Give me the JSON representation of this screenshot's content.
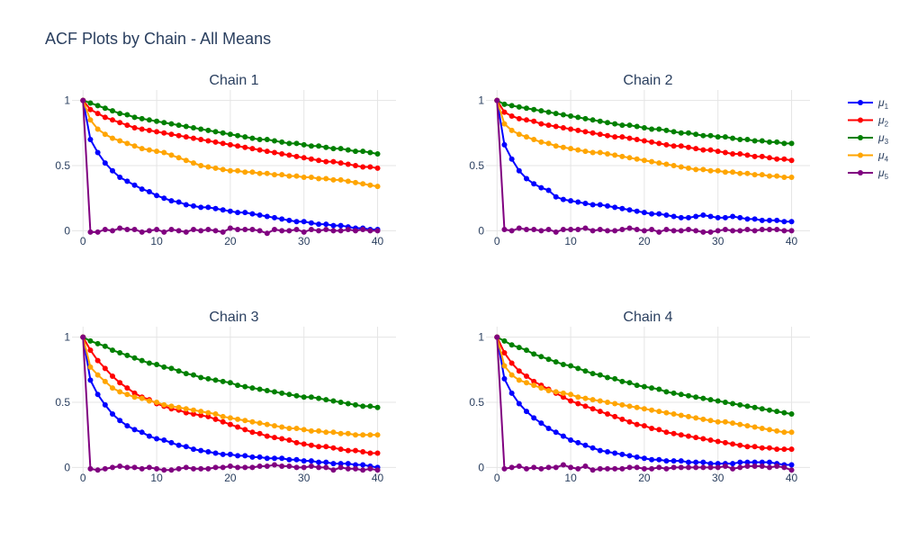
{
  "page": {
    "title": "ACF Plots by Chain - All Means"
  },
  "legend": [
    {
      "key": "mu1",
      "label": "μ1",
      "base": "μ",
      "sub": "1",
      "color": "#0000ff"
    },
    {
      "key": "mu2",
      "label": "μ2",
      "base": "μ",
      "sub": "2",
      "color": "#ff0000"
    },
    {
      "key": "mu3",
      "label": "μ3",
      "base": "μ",
      "sub": "3",
      "color": "#008000"
    },
    {
      "key": "mu4",
      "label": "μ4",
      "base": "μ",
      "sub": "4",
      "color": "#ffa500"
    },
    {
      "key": "mu5",
      "label": "μ5",
      "base": "μ",
      "sub": "5",
      "color": "#800080"
    }
  ],
  "chart_data": [
    {
      "type": "line",
      "title": "Chain 1",
      "x": {
        "min": 0,
        "max": 40,
        "step": 1
      },
      "xlim": [
        -1.5,
        42.5
      ],
      "ylim": [
        -0.08,
        1.08
      ],
      "xticks": [
        0,
        10,
        20,
        30,
        40
      ],
      "xtick_labels": [
        "0",
        "10",
        "20",
        "30",
        "40"
      ],
      "yticks": [
        0,
        0.5,
        1
      ],
      "ytick_labels": [
        "0",
        "0.5",
        "1"
      ],
      "grid": true,
      "series": [
        {
          "name": "μ1",
          "color": "#0000ff",
          "values": [
            1,
            0.7,
            0.6,
            0.52,
            0.46,
            0.41,
            0.38,
            0.35,
            0.32,
            0.3,
            0.27,
            0.25,
            0.23,
            0.22,
            0.2,
            0.19,
            0.18,
            0.18,
            0.17,
            0.16,
            0.15,
            0.14,
            0.14,
            0.13,
            0.12,
            0.11,
            0.1,
            0.09,
            0.08,
            0.07,
            0.07,
            0.06,
            0.05,
            0.05,
            0.04,
            0.04,
            0.03,
            0.02,
            0.02,
            0.01,
            0.01
          ]
        },
        {
          "name": "μ2",
          "color": "#ff0000",
          "values": [
            1,
            0.93,
            0.9,
            0.87,
            0.85,
            0.83,
            0.81,
            0.79,
            0.78,
            0.77,
            0.76,
            0.75,
            0.74,
            0.73,
            0.72,
            0.71,
            0.7,
            0.69,
            0.68,
            0.67,
            0.66,
            0.65,
            0.64,
            0.63,
            0.62,
            0.61,
            0.6,
            0.59,
            0.58,
            0.57,
            0.56,
            0.55,
            0.54,
            0.53,
            0.53,
            0.52,
            0.51,
            0.5,
            0.49,
            0.49,
            0.48
          ]
        },
        {
          "name": "μ3",
          "color": "#008000",
          "values": [
            1,
            0.98,
            0.96,
            0.94,
            0.92,
            0.9,
            0.89,
            0.87,
            0.86,
            0.85,
            0.84,
            0.83,
            0.82,
            0.81,
            0.8,
            0.79,
            0.78,
            0.77,
            0.76,
            0.75,
            0.74,
            0.73,
            0.72,
            0.71,
            0.7,
            0.7,
            0.69,
            0.68,
            0.67,
            0.67,
            0.66,
            0.65,
            0.65,
            0.64,
            0.63,
            0.63,
            0.62,
            0.61,
            0.61,
            0.6,
            0.59
          ]
        },
        {
          "name": "μ4",
          "color": "#ffa500",
          "values": [
            1,
            0.85,
            0.78,
            0.74,
            0.71,
            0.69,
            0.67,
            0.65,
            0.63,
            0.62,
            0.61,
            0.6,
            0.58,
            0.56,
            0.54,
            0.52,
            0.5,
            0.49,
            0.48,
            0.47,
            0.46,
            0.46,
            0.45,
            0.45,
            0.44,
            0.44,
            0.43,
            0.43,
            0.42,
            0.42,
            0.41,
            0.41,
            0.4,
            0.4,
            0.39,
            0.39,
            0.38,
            0.37,
            0.36,
            0.35,
            0.34
          ]
        },
        {
          "name": "μ5",
          "color": "#800080",
          "values": [
            1,
            -0.01,
            -0.01,
            0.01,
            0.0,
            0.02,
            0.01,
            0.01,
            -0.01,
            0.0,
            0.01,
            -0.01,
            0.01,
            0.0,
            -0.01,
            0.01,
            0.0,
            0.01,
            0.0,
            -0.01,
            0.02,
            0.01,
            0.01,
            0.01,
            0.0,
            -0.02,
            0.01,
            0.0,
            0.0,
            0.01,
            -0.01,
            0.01,
            0.0,
            0.01,
            0.0,
            0.0,
            0.01,
            0.0,
            0.01,
            0.0,
            0.0
          ]
        }
      ]
    },
    {
      "type": "line",
      "title": "Chain 2",
      "x": {
        "min": 0,
        "max": 40,
        "step": 1
      },
      "xlim": [
        -1.5,
        42.5
      ],
      "ylim": [
        -0.08,
        1.08
      ],
      "xticks": [
        0,
        10,
        20,
        30,
        40
      ],
      "xtick_labels": [
        "0",
        "10",
        "20",
        "30",
        "40"
      ],
      "yticks": [
        0,
        0.5,
        1
      ],
      "ytick_labels": [
        "0",
        "0.5",
        "1"
      ],
      "grid": true,
      "series": [
        {
          "name": "μ1",
          "color": "#0000ff",
          "values": [
            1,
            0.66,
            0.55,
            0.46,
            0.4,
            0.36,
            0.33,
            0.31,
            0.26,
            0.24,
            0.23,
            0.22,
            0.21,
            0.2,
            0.2,
            0.19,
            0.18,
            0.17,
            0.16,
            0.15,
            0.14,
            0.13,
            0.13,
            0.12,
            0.11,
            0.1,
            0.1,
            0.11,
            0.12,
            0.11,
            0.1,
            0.1,
            0.11,
            0.1,
            0.09,
            0.09,
            0.08,
            0.08,
            0.08,
            0.07,
            0.07
          ]
        },
        {
          "name": "μ2",
          "color": "#ff0000",
          "values": [
            1,
            0.91,
            0.88,
            0.86,
            0.85,
            0.84,
            0.82,
            0.81,
            0.8,
            0.79,
            0.78,
            0.77,
            0.76,
            0.75,
            0.74,
            0.73,
            0.72,
            0.72,
            0.71,
            0.7,
            0.69,
            0.68,
            0.67,
            0.66,
            0.65,
            0.65,
            0.64,
            0.63,
            0.62,
            0.62,
            0.61,
            0.6,
            0.59,
            0.59,
            0.58,
            0.57,
            0.57,
            0.56,
            0.55,
            0.55,
            0.54
          ]
        },
        {
          "name": "μ3",
          "color": "#008000",
          "values": [
            1,
            0.97,
            0.96,
            0.95,
            0.94,
            0.93,
            0.92,
            0.91,
            0.9,
            0.89,
            0.88,
            0.87,
            0.86,
            0.85,
            0.84,
            0.83,
            0.82,
            0.81,
            0.81,
            0.8,
            0.79,
            0.78,
            0.78,
            0.77,
            0.76,
            0.75,
            0.75,
            0.74,
            0.73,
            0.73,
            0.72,
            0.72,
            0.71,
            0.7,
            0.7,
            0.69,
            0.69,
            0.68,
            0.68,
            0.67,
            0.67
          ]
        },
        {
          "name": "μ4",
          "color": "#ffa500",
          "values": [
            1,
            0.82,
            0.77,
            0.74,
            0.72,
            0.7,
            0.68,
            0.67,
            0.65,
            0.64,
            0.63,
            0.62,
            0.61,
            0.6,
            0.6,
            0.59,
            0.58,
            0.57,
            0.56,
            0.55,
            0.54,
            0.53,
            0.52,
            0.51,
            0.5,
            0.49,
            0.48,
            0.47,
            0.47,
            0.46,
            0.46,
            0.45,
            0.45,
            0.44,
            0.44,
            0.43,
            0.43,
            0.42,
            0.42,
            0.41,
            0.41
          ]
        },
        {
          "name": "μ5",
          "color": "#800080",
          "values": [
            1,
            0.01,
            0.0,
            0.02,
            0.01,
            0.01,
            0.0,
            0.01,
            -0.01,
            0.01,
            0.01,
            0.01,
            0.02,
            0.0,
            0.01,
            0.0,
            0.0,
            0.01,
            0.02,
            0.01,
            0.0,
            0.01,
            -0.01,
            0.01,
            0.0,
            0.0,
            0.01,
            0.0,
            -0.01,
            -0.01,
            0.0,
            0.01,
            0.0,
            0.0,
            0.01,
            0.0,
            0.01,
            0.01,
            0.01,
            0.0,
            0.0
          ]
        }
      ]
    },
    {
      "type": "line",
      "title": "Chain 3",
      "x": {
        "min": 0,
        "max": 40,
        "step": 1
      },
      "xlim": [
        -1.5,
        42.5
      ],
      "ylim": [
        -0.08,
        1.08
      ],
      "xticks": [
        0,
        10,
        20,
        30,
        40
      ],
      "xtick_labels": [
        "0",
        "10",
        "20",
        "30",
        "40"
      ],
      "yticks": [
        0,
        0.5,
        1
      ],
      "ytick_labels": [
        "0",
        "0.5",
        "1"
      ],
      "grid": true,
      "series": [
        {
          "name": "μ1",
          "color": "#0000ff",
          "values": [
            1,
            0.67,
            0.56,
            0.48,
            0.41,
            0.36,
            0.32,
            0.29,
            0.27,
            0.24,
            0.22,
            0.21,
            0.19,
            0.17,
            0.16,
            0.14,
            0.13,
            0.12,
            0.11,
            0.1,
            0.1,
            0.09,
            0.09,
            0.08,
            0.08,
            0.07,
            0.07,
            0.07,
            0.06,
            0.06,
            0.05,
            0.05,
            0.04,
            0.04,
            0.03,
            0.03,
            0.03,
            0.02,
            0.02,
            0.01,
            0.0
          ]
        },
        {
          "name": "μ2",
          "color": "#ff0000",
          "values": [
            1,
            0.9,
            0.82,
            0.76,
            0.7,
            0.65,
            0.61,
            0.57,
            0.54,
            0.52,
            0.49,
            0.47,
            0.45,
            0.44,
            0.42,
            0.41,
            0.4,
            0.39,
            0.37,
            0.35,
            0.33,
            0.31,
            0.29,
            0.27,
            0.26,
            0.24,
            0.23,
            0.22,
            0.21,
            0.19,
            0.18,
            0.17,
            0.16,
            0.16,
            0.15,
            0.14,
            0.13,
            0.13,
            0.12,
            0.11,
            0.11
          ]
        },
        {
          "name": "μ3",
          "color": "#008000",
          "values": [
            1,
            0.97,
            0.95,
            0.93,
            0.9,
            0.88,
            0.86,
            0.84,
            0.82,
            0.8,
            0.79,
            0.77,
            0.76,
            0.74,
            0.72,
            0.71,
            0.69,
            0.68,
            0.67,
            0.66,
            0.65,
            0.63,
            0.62,
            0.61,
            0.6,
            0.59,
            0.58,
            0.57,
            0.56,
            0.55,
            0.54,
            0.54,
            0.53,
            0.52,
            0.51,
            0.5,
            0.49,
            0.48,
            0.47,
            0.47,
            0.46
          ]
        },
        {
          "name": "μ4",
          "color": "#ffa500",
          "values": [
            1,
            0.77,
            0.71,
            0.66,
            0.61,
            0.58,
            0.56,
            0.54,
            0.53,
            0.51,
            0.5,
            0.48,
            0.47,
            0.46,
            0.45,
            0.44,
            0.43,
            0.42,
            0.41,
            0.39,
            0.38,
            0.37,
            0.36,
            0.35,
            0.34,
            0.33,
            0.32,
            0.31,
            0.3,
            0.3,
            0.29,
            0.28,
            0.28,
            0.27,
            0.27,
            0.26,
            0.26,
            0.25,
            0.25,
            0.25,
            0.25
          ]
        },
        {
          "name": "μ5",
          "color": "#800080",
          "values": [
            1,
            -0.01,
            -0.02,
            -0.01,
            0.0,
            0.01,
            0.0,
            0.0,
            -0.01,
            0.0,
            -0.01,
            -0.02,
            -0.02,
            -0.01,
            0.0,
            -0.01,
            -0.01,
            -0.01,
            0.0,
            0.0,
            0.01,
            0.0,
            0.0,
            0.0,
            0.01,
            0.01,
            0.02,
            0.01,
            0.01,
            0.0,
            0.0,
            0.01,
            0.0,
            0.0,
            -0.02,
            0.0,
            -0.01,
            -0.01,
            -0.02,
            -0.01,
            -0.02
          ]
        }
      ]
    },
    {
      "type": "line",
      "title": "Chain 4",
      "x": {
        "min": 0,
        "max": 40,
        "step": 1
      },
      "xlim": [
        -1.5,
        42.5
      ],
      "ylim": [
        -0.08,
        1.08
      ],
      "xticks": [
        0,
        10,
        20,
        30,
        40
      ],
      "xtick_labels": [
        "0",
        "10",
        "20",
        "30",
        "40"
      ],
      "yticks": [
        0,
        0.5,
        1
      ],
      "ytick_labels": [
        "0",
        "0.5",
        "1"
      ],
      "grid": true,
      "series": [
        {
          "name": "μ1",
          "color": "#0000ff",
          "values": [
            1,
            0.68,
            0.57,
            0.49,
            0.43,
            0.38,
            0.34,
            0.3,
            0.27,
            0.24,
            0.21,
            0.19,
            0.17,
            0.15,
            0.13,
            0.12,
            0.11,
            0.1,
            0.09,
            0.08,
            0.07,
            0.06,
            0.06,
            0.05,
            0.05,
            0.05,
            0.04,
            0.04,
            0.04,
            0.03,
            0.03,
            0.03,
            0.03,
            0.04,
            0.04,
            0.04,
            0.04,
            0.04,
            0.03,
            0.02,
            0.02
          ]
        },
        {
          "name": "μ2",
          "color": "#ff0000",
          "values": [
            1,
            0.88,
            0.8,
            0.74,
            0.7,
            0.66,
            0.63,
            0.6,
            0.57,
            0.54,
            0.51,
            0.49,
            0.47,
            0.45,
            0.43,
            0.41,
            0.39,
            0.37,
            0.35,
            0.33,
            0.32,
            0.3,
            0.29,
            0.27,
            0.26,
            0.25,
            0.24,
            0.23,
            0.22,
            0.21,
            0.2,
            0.19,
            0.18,
            0.17,
            0.16,
            0.16,
            0.15,
            0.15,
            0.14,
            0.14,
            0.14
          ]
        },
        {
          "name": "μ3",
          "color": "#008000",
          "values": [
            1,
            0.97,
            0.94,
            0.92,
            0.9,
            0.87,
            0.85,
            0.83,
            0.81,
            0.79,
            0.78,
            0.76,
            0.74,
            0.72,
            0.71,
            0.69,
            0.68,
            0.66,
            0.65,
            0.63,
            0.62,
            0.61,
            0.6,
            0.58,
            0.57,
            0.56,
            0.55,
            0.54,
            0.53,
            0.52,
            0.51,
            0.5,
            0.49,
            0.48,
            0.47,
            0.46,
            0.45,
            0.44,
            0.43,
            0.42,
            0.41
          ]
        },
        {
          "name": "μ4",
          "color": "#ffa500",
          "values": [
            1,
            0.78,
            0.71,
            0.67,
            0.65,
            0.63,
            0.61,
            0.59,
            0.58,
            0.57,
            0.56,
            0.54,
            0.53,
            0.52,
            0.51,
            0.5,
            0.49,
            0.48,
            0.47,
            0.46,
            0.45,
            0.44,
            0.43,
            0.42,
            0.41,
            0.4,
            0.39,
            0.38,
            0.37,
            0.36,
            0.35,
            0.35,
            0.34,
            0.33,
            0.32,
            0.31,
            0.3,
            0.29,
            0.28,
            0.27,
            0.27
          ]
        },
        {
          "name": "μ5",
          "color": "#800080",
          "values": [
            1,
            -0.01,
            0.0,
            0.01,
            -0.01,
            0.0,
            -0.01,
            0.0,
            0.0,
            0.02,
            0.0,
            -0.01,
            0.01,
            -0.02,
            -0.01,
            -0.01,
            -0.01,
            -0.01,
            0.0,
            0.0,
            -0.01,
            -0.01,
            0.0,
            -0.01,
            0.0,
            0.0,
            0.0,
            0.0,
            0.0,
            0.0,
            0.0,
            0.01,
            -0.01,
            0.0,
            0.01,
            0.01,
            0.01,
            0.0,
            0.01,
            0.0,
            -0.02
          ]
        }
      ]
    }
  ]
}
